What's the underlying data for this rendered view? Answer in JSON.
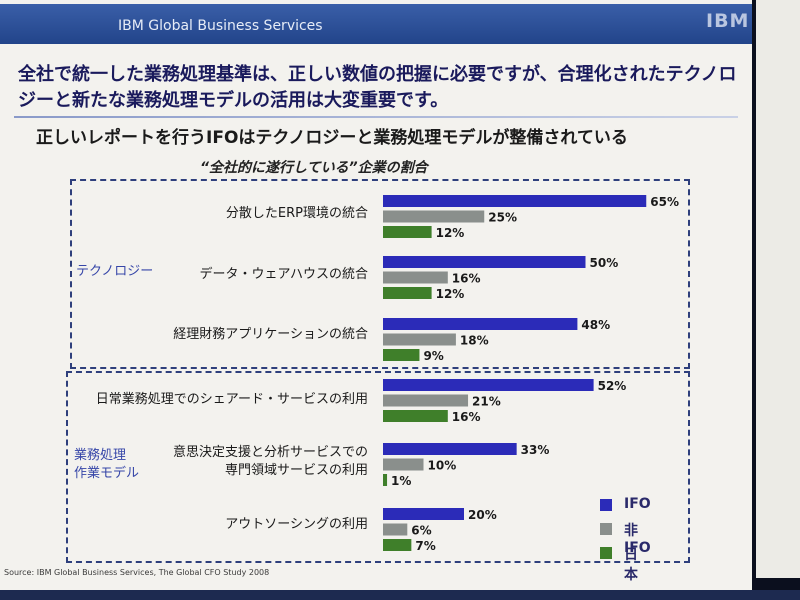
{
  "header": {
    "title": "IBM Global Business Services",
    "logo": "IBM"
  },
  "headline": "全社で統一した業務処理基準は、正しい数値の把握に必要ですが、合理化されたテクノロジーと新たな業務処理モデルの活用は大変重要です。",
  "subtitle": "正しいレポートを行うIFOはテクノロジーと業務処理モデルが整備されている",
  "source": "Source: IBM Global Business Services, The Global CFO Study 2008",
  "groups": {
    "technology": "テクノロジー",
    "ops_model": "業務処理\n作業モデル"
  },
  "chart_data": {
    "type": "bar",
    "orientation": "horizontal",
    "title": "“全社的に遂行している”企業の割合",
    "value_format": "percent",
    "categories": [
      "分散したERP環境の統合",
      "データ・ウェアハウスの統合",
      "経理財務アプリケーションの統合",
      "日常業務処理でのシェアード・サービスの利用",
      "意思決定支援と分析サービスでの\n専門領域サービスの利用",
      "アウトソーシングの利用"
    ],
    "series": [
      {
        "name": "IFO",
        "color": "#2b2bb8",
        "values": [
          65,
          50,
          48,
          52,
          33,
          20
        ]
      },
      {
        "name": "非IFO",
        "color": "#8a8f8c",
        "values": [
          25,
          16,
          18,
          21,
          10,
          6
        ]
      },
      {
        "name": "日本",
        "color": "#3f7f2a",
        "values": [
          12,
          12,
          9,
          16,
          1,
          7
        ]
      }
    ],
    "legend_position": "bottom-right",
    "grid": false
  }
}
